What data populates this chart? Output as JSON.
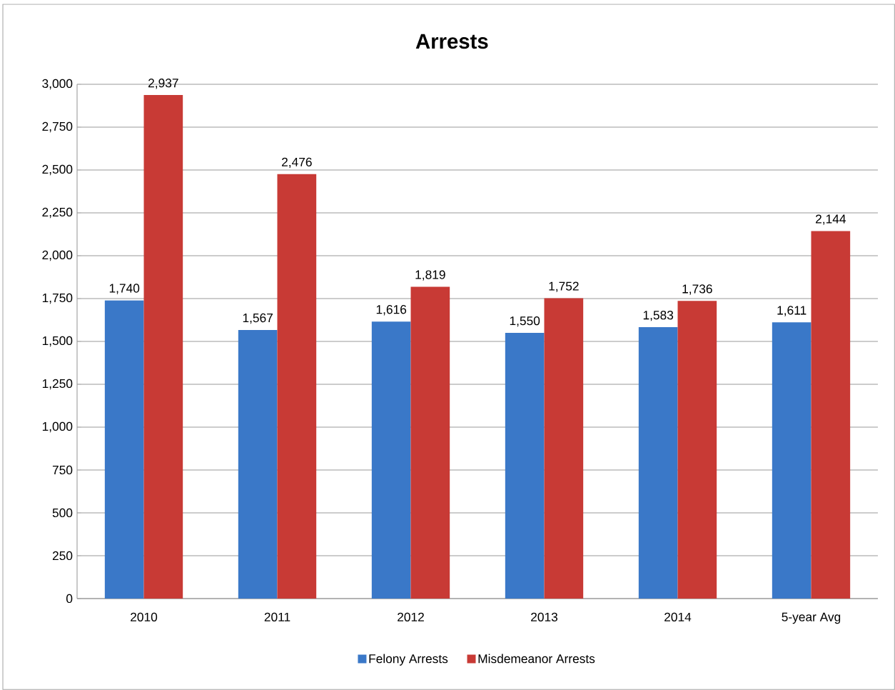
{
  "chart_data": {
    "type": "bar",
    "title": "Arrests",
    "categories": [
      "2010",
      "2011",
      "2012",
      "2013",
      "2014",
      "5-year Avg"
    ],
    "series": [
      {
        "name": "Felony Arrests",
        "color": "#3a78c8",
        "values": [
          1740,
          1567,
          1616,
          1550,
          1583,
          1611
        ],
        "value_labels": [
          "1,740",
          "1,567",
          "1,616",
          "1,550",
          "1,583",
          "1,611"
        ]
      },
      {
        "name": "Misdemeanor Arrests",
        "color": "#c83a35",
        "values": [
          2937,
          2476,
          1819,
          1752,
          1736,
          2144
        ],
        "value_labels": [
          "2,937",
          "2,476",
          "1,819",
          "1,752",
          "1,736",
          "2,144"
        ]
      }
    ],
    "ylim": [
      0,
      3000
    ],
    "yticks": [
      0,
      250,
      500,
      750,
      {
        "value": 1000,
        "label": "1,000"
      },
      {
        "value": 1250,
        "label": "1,250"
      },
      {
        "value": 1500,
        "label": "1,500"
      },
      {
        "value": 1750,
        "label": "1,750"
      },
      {
        "value": 2000,
        "label": "2,000"
      },
      {
        "value": 2250,
        "label": "2,250"
      },
      {
        "value": 2500,
        "label": "2,500"
      },
      {
        "value": 2750,
        "label": "2,750"
      },
      {
        "value": 3000,
        "label": "3,000"
      }
    ],
    "grid": "y",
    "legend": "bottom"
  }
}
